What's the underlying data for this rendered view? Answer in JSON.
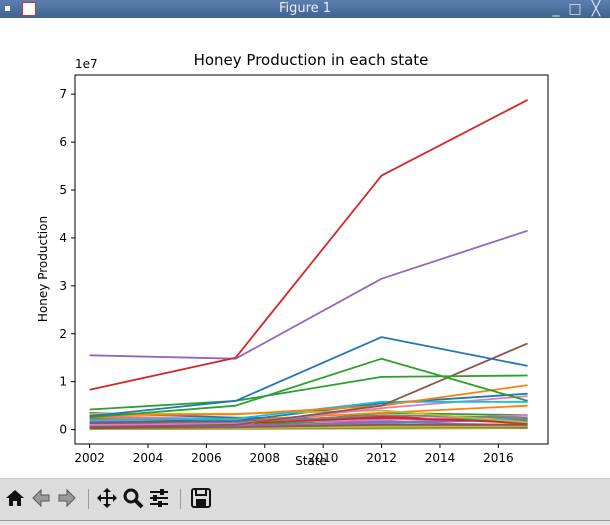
{
  "window": {
    "title": "Figure 1",
    "minimize_glyph": "_",
    "maximize_glyph": "□",
    "close_glyph": "╳"
  },
  "toolbar": {
    "home_icon": "home-icon",
    "back_icon": "arrow-left-icon",
    "forward_icon": "arrow-right-icon",
    "pan_icon": "move-icon",
    "zoom_icon": "magnifier-icon",
    "configure_icon": "sliders-icon",
    "save_icon": "floppy-disk-icon"
  },
  "chart_data": {
    "type": "line",
    "title": "Honey Production in each state",
    "xlabel": "State",
    "ylabel": "Honey Production",
    "y_offset_label": "1e7",
    "xlim": [
      2001.5,
      2017.7
    ],
    "ylim": [
      -3000000,
      74000000
    ],
    "x_ticks": [
      2002,
      2004,
      2006,
      2008,
      2010,
      2012,
      2014,
      2016
    ],
    "y_ticks": [
      0,
      10000000,
      20000000,
      30000000,
      40000000,
      50000000,
      60000000,
      70000000
    ],
    "y_tick_labels": [
      "0",
      "1",
      "2",
      "3",
      "4",
      "5",
      "6",
      "7"
    ],
    "grid": false,
    "x": [
      2002,
      2007,
      2012,
      2017
    ],
    "series": [
      {
        "color": "#d62728",
        "values": [
          8300000,
          15000000,
          53000000,
          68800000
        ]
      },
      {
        "color": "#9467bd",
        "values": [
          15500000,
          14800000,
          31500000,
          41500000
        ]
      },
      {
        "color": "#1f77b4",
        "values": [
          2800000,
          6000000,
          19300000,
          13300000
        ]
      },
      {
        "color": "#2ca02c",
        "values": [
          2600000,
          5000000,
          14800000,
          6000000
        ]
      },
      {
        "color": "#2ca02c",
        "values": [
          4200000,
          6000000,
          11000000,
          11300000
        ]
      },
      {
        "color": "#8c564b",
        "values": [
          500000,
          1000000,
          5000000,
          18000000
        ]
      },
      {
        "color": "#ff7f0e",
        "values": [
          3000000,
          3200000,
          5000000,
          9300000
        ]
      },
      {
        "color": "#17becf",
        "values": [
          2000000,
          2300000,
          5800000,
          5800000
        ]
      },
      {
        "color": "#e377c2",
        "values": [
          1000000,
          1200000,
          4500000,
          7000000
        ]
      },
      {
        "color": "#bcbd22",
        "values": [
          3300000,
          3300000,
          4000000,
          1500000
        ]
      },
      {
        "color": "#1f77b4",
        "values": [
          1500000,
          1800000,
          5500000,
          7500000
        ]
      },
      {
        "color": "#7f7f7f",
        "values": [
          800000,
          1500000,
          3000000,
          2500000
        ]
      },
      {
        "color": "#ff7f0e",
        "values": [
          2500000,
          2000000,
          3500000,
          5000000
        ]
      },
      {
        "color": "#d62728",
        "values": [
          1200000,
          1300000,
          2500000,
          1500000
        ]
      },
      {
        "color": "#9467bd",
        "values": [
          600000,
          800000,
          1500000,
          2000000
        ]
      },
      {
        "color": "#8c564b",
        "values": [
          300000,
          500000,
          1000000,
          1000000
        ]
      },
      {
        "color": "#e377c2",
        "values": [
          1800000,
          1500000,
          2000000,
          3000000
        ]
      },
      {
        "color": "#2ca02c",
        "values": [
          400000,
          600000,
          3500000,
          3000000
        ]
      },
      {
        "color": "#17becf",
        "values": [
          900000,
          700000,
          1200000,
          2500000
        ]
      },
      {
        "color": "#bcbd22",
        "values": [
          200000,
          300000,
          600000,
          800000
        ]
      },
      {
        "color": "#7f7f7f",
        "values": [
          100000,
          200000,
          400000,
          500000
        ]
      },
      {
        "color": "#1f77b4",
        "values": [
          3500000,
          2500000,
          2200000,
          1800000
        ]
      },
      {
        "color": "#d62728",
        "values": [
          2200000,
          1800000,
          2800000,
          1300000
        ]
      },
      {
        "color": "#9467bd",
        "values": [
          500000,
          400000,
          1800000,
          600000
        ]
      },
      {
        "color": "#ff7f0e",
        "values": [
          1500000,
          1000000,
          900000,
          700000
        ]
      },
      {
        "color": "#2ca02c",
        "values": [
          700000,
          900000,
          2200000,
          2200000
        ]
      },
      {
        "color": "#e377c2",
        "values": [
          2800000,
          2200000,
          1500000,
          1000000
        ]
      },
      {
        "color": "#8c564b",
        "values": [
          1100000,
          800000,
          700000,
          400000
        ]
      },
      {
        "color": "#17becf",
        "values": [
          300000,
          300000,
          800000,
          1200000
        ]
      },
      {
        "color": "#bcbd22",
        "values": [
          150000,
          150000,
          200000,
          300000
        ]
      }
    ]
  }
}
